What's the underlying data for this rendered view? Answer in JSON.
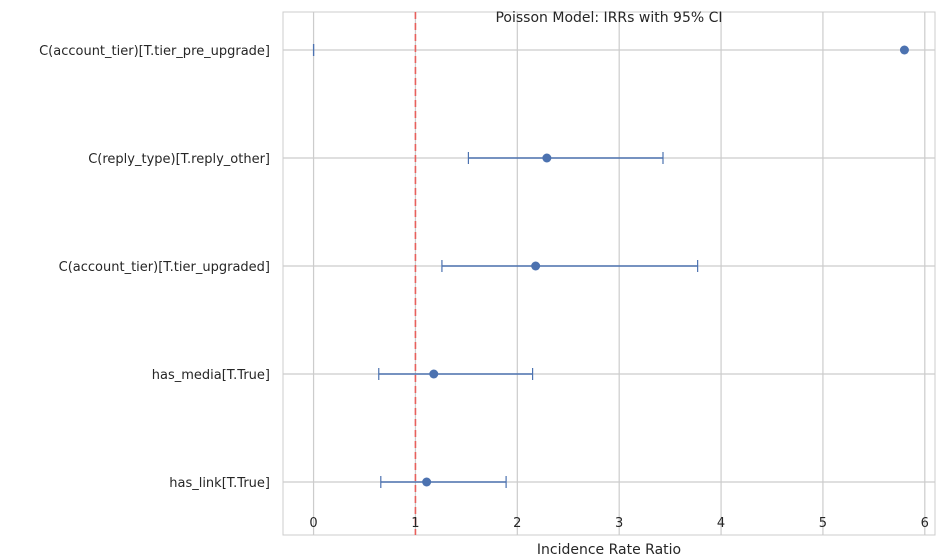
{
  "chart_data": {
    "type": "scatter",
    "subtype": "forest-plot-errorbar",
    "title": "Poisson Model: IRRs with 95% CI",
    "xlabel": "Incidence Rate Ratio",
    "ylabel": "",
    "xlim": [
      -0.3,
      6.1
    ],
    "xticks": [
      0,
      1,
      2,
      3,
      4,
      5,
      6
    ],
    "grid": true,
    "reference_line": {
      "x": 1,
      "color": "#e8605c",
      "style": "dashed"
    },
    "point_color": "#4c72b0",
    "categories": [
      "C(account_tier)[T.tier_pre_upgrade]",
      "C(reply_type)[T.reply_other]",
      "C(account_tier)[T.tier_upgraded]",
      "has_media[T.True]",
      "has_link[T.True]"
    ],
    "series": [
      {
        "points": [
          {
            "category": "C(account_tier)[T.tier_pre_upgrade]",
            "irr": 5.8,
            "ci_low": 0.0,
            "ci_high": 0.0
          },
          {
            "category": "C(reply_type)[T.reply_other]",
            "irr": 2.29,
            "ci_low": 1.52,
            "ci_high": 3.43
          },
          {
            "category": "C(account_tier)[T.tier_upgraded]",
            "irr": 2.18,
            "ci_low": 1.26,
            "ci_high": 3.77
          },
          {
            "category": "has_media[T.True]",
            "irr": 1.18,
            "ci_low": 0.64,
            "ci_high": 2.15
          },
          {
            "category": "has_link[T.True]",
            "irr": 1.11,
            "ci_low": 0.66,
            "ci_high": 1.89
          }
        ]
      }
    ]
  }
}
